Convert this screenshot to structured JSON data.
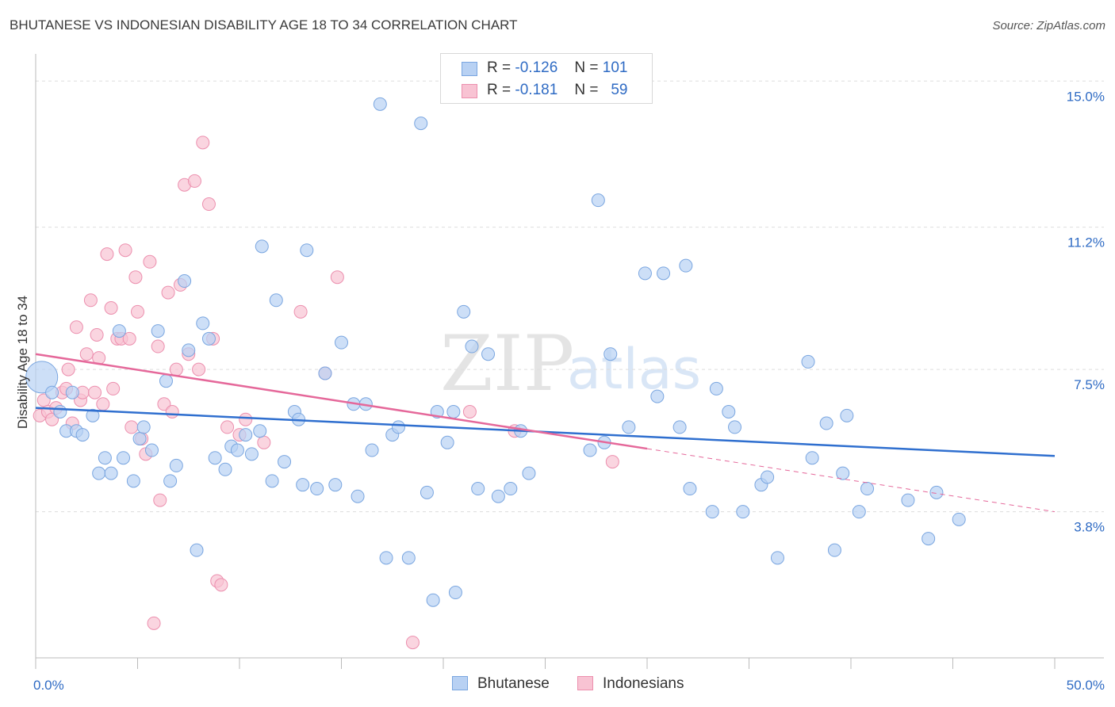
{
  "title": "BHUTANESE VS INDONESIAN DISABILITY AGE 18 TO 34 CORRELATION CHART",
  "source": "Source: ZipAtlas.com",
  "watermark": {
    "zip": "ZIP",
    "atlas": "atlas"
  },
  "legend_stats": [
    {
      "r_label": "R =",
      "r_value": "-0.126",
      "n_label": "N =",
      "n_value": "101"
    },
    {
      "r_label": "R =",
      "r_value": "-0.181",
      "n_label": "N =",
      "n_value": "59"
    }
  ],
  "colors": {
    "blue_fill": "#b8d1f3",
    "blue_stroke": "#7aa6e0",
    "blue_line": "#2f6fcf",
    "pink_fill": "#f8c3d3",
    "pink_stroke": "#ec8fae",
    "pink_line": "#e5689a",
    "axis_text": "#2f6bc4",
    "grid": "#dddddd"
  },
  "chart_data": {
    "type": "scatter",
    "title": "BHUTANESE VS INDONESIAN DISABILITY AGE 18 TO 34 CORRELATION CHART",
    "xlabel": "",
    "ylabel": "Disability Age 18 to 34",
    "xlim": [
      0,
      50
    ],
    "ylim": [
      0,
      15.5
    ],
    "x_tick_labels": [
      {
        "value": 0,
        "label": "0.0%"
      },
      {
        "value": 50,
        "label": "50.0%"
      }
    ],
    "y_tick_labels": [
      {
        "value": 3.8,
        "label": "3.8%"
      },
      {
        "value": 7.5,
        "label": "7.5%"
      },
      {
        "value": 11.2,
        "label": "11.2%"
      },
      {
        "value": 15.0,
        "label": "15.0%"
      }
    ],
    "grid": true,
    "legend_position": "bottom-center",
    "series": [
      {
        "name": "Bhutanese",
        "r": -0.126,
        "n": 101,
        "trend": {
          "x0": 0,
          "y0": 6.5,
          "x1": 50,
          "y1": 5.25,
          "dashed_from": null
        },
        "points": [
          [
            0.3,
            7.3
          ],
          [
            0.8,
            6.9
          ],
          [
            1.2,
            6.4
          ],
          [
            1.5,
            5.9
          ],
          [
            1.8,
            6.9
          ],
          [
            2.0,
            5.9
          ],
          [
            2.3,
            5.8
          ],
          [
            2.8,
            6.3
          ],
          [
            3.1,
            4.8
          ],
          [
            3.4,
            5.2
          ],
          [
            3.7,
            4.8
          ],
          [
            4.1,
            8.5
          ],
          [
            4.3,
            5.2
          ],
          [
            4.8,
            4.6
          ],
          [
            5.1,
            5.7
          ],
          [
            5.3,
            6.0
          ],
          [
            5.7,
            5.4
          ],
          [
            6.0,
            8.5
          ],
          [
            6.4,
            7.2
          ],
          [
            6.6,
            4.6
          ],
          [
            6.9,
            5.0
          ],
          [
            7.3,
            9.8
          ],
          [
            7.5,
            8.0
          ],
          [
            7.9,
            2.8
          ],
          [
            8.2,
            8.7
          ],
          [
            8.5,
            8.3
          ],
          [
            8.8,
            5.2
          ],
          [
            9.3,
            4.9
          ],
          [
            9.6,
            5.5
          ],
          [
            9.9,
            5.4
          ],
          [
            10.3,
            5.8
          ],
          [
            10.6,
            5.3
          ],
          [
            11.0,
            5.9
          ],
          [
            11.1,
            10.7
          ],
          [
            11.6,
            4.6
          ],
          [
            11.8,
            9.3
          ],
          [
            12.2,
            5.1
          ],
          [
            12.7,
            6.4
          ],
          [
            12.9,
            6.2
          ],
          [
            13.1,
            4.5
          ],
          [
            13.3,
            10.6
          ],
          [
            13.8,
            4.4
          ],
          [
            14.2,
            7.4
          ],
          [
            14.7,
            4.5
          ],
          [
            15.0,
            8.2
          ],
          [
            15.6,
            6.6
          ],
          [
            15.8,
            4.2
          ],
          [
            16.2,
            6.6
          ],
          [
            16.5,
            5.4
          ],
          [
            16.9,
            14.4
          ],
          [
            17.2,
            2.6
          ],
          [
            17.5,
            5.8
          ],
          [
            17.8,
            6.0
          ],
          [
            18.3,
            2.6
          ],
          [
            18.9,
            13.9
          ],
          [
            19.2,
            4.3
          ],
          [
            19.5,
            1.5
          ],
          [
            19.7,
            6.4
          ],
          [
            20.2,
            5.6
          ],
          [
            20.5,
            6.4
          ],
          [
            20.6,
            1.7
          ],
          [
            21.0,
            9.0
          ],
          [
            21.4,
            8.1
          ],
          [
            21.7,
            4.4
          ],
          [
            22.2,
            7.9
          ],
          [
            22.7,
            4.2
          ],
          [
            23.3,
            4.4
          ],
          [
            23.8,
            5.9
          ],
          [
            24.2,
            4.8
          ],
          [
            27.2,
            5.4
          ],
          [
            27.6,
            11.9
          ],
          [
            27.9,
            5.6
          ],
          [
            28.2,
            7.9
          ],
          [
            29.1,
            6.0
          ],
          [
            29.9,
            10.0
          ],
          [
            30.5,
            6.8
          ],
          [
            30.8,
            10.0
          ],
          [
            31.6,
            6.0
          ],
          [
            31.9,
            10.2
          ],
          [
            32.1,
            4.4
          ],
          [
            33.2,
            3.8
          ],
          [
            33.4,
            7.0
          ],
          [
            34.0,
            6.4
          ],
          [
            34.3,
            6.0
          ],
          [
            34.7,
            3.8
          ],
          [
            35.6,
            4.5
          ],
          [
            35.9,
            4.7
          ],
          [
            36.4,
            2.6
          ],
          [
            37.9,
            7.7
          ],
          [
            38.1,
            5.2
          ],
          [
            38.8,
            6.1
          ],
          [
            39.2,
            2.8
          ],
          [
            39.6,
            4.8
          ],
          [
            39.8,
            6.3
          ],
          [
            40.4,
            3.8
          ],
          [
            40.8,
            4.4
          ],
          [
            42.8,
            4.1
          ],
          [
            43.8,
            3.1
          ],
          [
            44.2,
            4.3
          ],
          [
            45.3,
            3.6
          ]
        ]
      },
      {
        "name": "Indonesians",
        "r": -0.181,
        "n": 59,
        "trend": {
          "x0": 0,
          "y0": 7.9,
          "x1": 50,
          "y1": 3.8,
          "dashed_from": 30
        },
        "points": [
          [
            0.2,
            6.3
          ],
          [
            0.4,
            6.7
          ],
          [
            0.6,
            6.4
          ],
          [
            0.8,
            6.2
          ],
          [
            1.0,
            6.5
          ],
          [
            1.3,
            6.9
          ],
          [
            1.5,
            7.0
          ],
          [
            1.6,
            7.5
          ],
          [
            1.8,
            6.1
          ],
          [
            2.0,
            8.6
          ],
          [
            2.2,
            6.7
          ],
          [
            2.3,
            6.9
          ],
          [
            2.5,
            7.9
          ],
          [
            2.7,
            9.3
          ],
          [
            2.9,
            6.9
          ],
          [
            3.0,
            8.4
          ],
          [
            3.1,
            7.8
          ],
          [
            3.3,
            6.6
          ],
          [
            3.5,
            10.5
          ],
          [
            3.7,
            9.1
          ],
          [
            3.8,
            7.0
          ],
          [
            4.0,
            8.3
          ],
          [
            4.2,
            8.3
          ],
          [
            4.4,
            10.6
          ],
          [
            4.6,
            8.3
          ],
          [
            4.7,
            6.0
          ],
          [
            4.9,
            9.9
          ],
          [
            5.0,
            9.0
          ],
          [
            5.2,
            5.7
          ],
          [
            5.4,
            5.3
          ],
          [
            5.6,
            10.3
          ],
          [
            5.8,
            0.9
          ],
          [
            6.0,
            8.1
          ],
          [
            6.1,
            4.1
          ],
          [
            6.3,
            6.6
          ],
          [
            6.5,
            9.5
          ],
          [
            6.7,
            6.4
          ],
          [
            6.9,
            7.5
          ],
          [
            7.1,
            9.7
          ],
          [
            7.3,
            12.3
          ],
          [
            7.5,
            7.9
          ],
          [
            7.8,
            12.4
          ],
          [
            8.0,
            7.5
          ],
          [
            8.2,
            13.4
          ],
          [
            8.5,
            11.8
          ],
          [
            8.7,
            8.3
          ],
          [
            8.9,
            2.0
          ],
          [
            9.1,
            1.9
          ],
          [
            9.4,
            6.0
          ],
          [
            10.0,
            5.8
          ],
          [
            10.3,
            6.2
          ],
          [
            11.2,
            5.6
          ],
          [
            13.0,
            9.0
          ],
          [
            14.2,
            7.4
          ],
          [
            14.8,
            9.9
          ],
          [
            18.5,
            0.4
          ],
          [
            21.3,
            6.4
          ],
          [
            23.5,
            5.9
          ],
          [
            28.3,
            5.1
          ]
        ]
      }
    ]
  },
  "bottom_legend": [
    {
      "label": "Bhutanese"
    },
    {
      "label": "Indonesians"
    }
  ]
}
